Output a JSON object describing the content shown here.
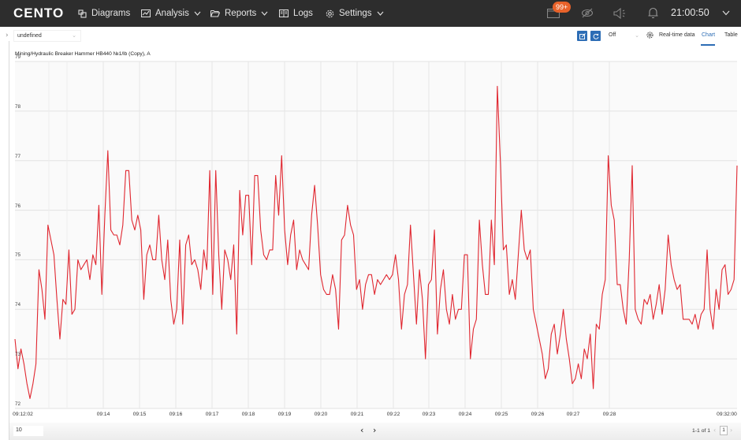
{
  "app": {
    "logo": "CENTO",
    "nav": [
      {
        "label": "Diagrams",
        "icon": "diagrams-icon",
        "has_dropdown": false
      },
      {
        "label": "Analysis",
        "icon": "analysis-icon",
        "has_dropdown": true
      },
      {
        "label": "Reports",
        "icon": "folder-icon",
        "has_dropdown": true
      },
      {
        "label": "Logs",
        "icon": "logs-icon",
        "has_dropdown": false
      },
      {
        "label": "Settings",
        "icon": "gear-icon",
        "has_dropdown": true
      }
    ],
    "notifications_badge": "99+",
    "clock": "21:00:50"
  },
  "toolbar": {
    "source_select": "undefined",
    "refresh_select": "Off",
    "realtime_label": "Real-time data",
    "tabs": [
      {
        "label": "Chart",
        "active": true
      },
      {
        "label": "Table",
        "active": false
      }
    ]
  },
  "footer": {
    "page_size": "10",
    "page_count": "1-1 of 1",
    "current_page": "1"
  },
  "colors": {
    "topbar": "#2d2d2d",
    "accent": "#2d6db5",
    "badge": "#e8622a",
    "series": "#e0262f"
  },
  "chart_data": {
    "type": "line",
    "title": "Mining/Hydraulic Breaker Hammer HB440 №1/lb (Copy), A",
    "xlabel": "",
    "ylabel": "A",
    "ylim": [
      72,
      79
    ],
    "yticks": [
      "79",
      "78",
      "77",
      "76",
      "75",
      "74",
      "73",
      "72"
    ],
    "xticks": [
      "09:12:02",
      "09:14",
      "09:15",
      "09:16",
      "09:17",
      "09:18",
      "09:19",
      "09:20",
      "09:21",
      "09:22",
      "09:23",
      "09:24",
      "09:25",
      "09:26",
      "09:27",
      "09:28",
      "09:32:00"
    ],
    "grid": true,
    "legend": "none",
    "series": [
      {
        "name": "Mining/Hydraulic Breaker Hammer HB440 №1/lb (Copy), A",
        "values": [
          73.4,
          72.8,
          73.2,
          72.9,
          72.5,
          72.2,
          72.5,
          72.9,
          74.8,
          74.4,
          73.8,
          75.7,
          75.4,
          75.1,
          74.2,
          73.4,
          74.2,
          74.1,
          75.2,
          73.9,
          74.0,
          75.0,
          74.8,
          74.9,
          75.0,
          74.6,
          75.1,
          74.9,
          76.1,
          74.3,
          75.9,
          77.2,
          75.6,
          75.5,
          75.5,
          75.3,
          75.7,
          76.8,
          76.8,
          75.8,
          75.6,
          75.9,
          75.6,
          74.2,
          75.1,
          75.3,
          75.0,
          75.0,
          75.9,
          75.0,
          74.6,
          75.4,
          74.2,
          73.7,
          74.0,
          75.4,
          73.7,
          75.3,
          75.5,
          74.9,
          75.0,
          74.8,
          74.4,
          75.2,
          74.8,
          76.8,
          74.3,
          76.8,
          75.1,
          74.0,
          75.2,
          75.0,
          74.6,
          75.3,
          73.5,
          76.4,
          75.5,
          76.3,
          76.3,
          74.9,
          76.7,
          76.7,
          75.6,
          75.1,
          75.0,
          75.2,
          75.2,
          76.7,
          75.9,
          77.1,
          75.6,
          74.9,
          75.5,
          75.8,
          74.8,
          75.2,
          75.0,
          74.9,
          74.8,
          75.9,
          76.5,
          75.7,
          74.7,
          74.4,
          74.3,
          74.3,
          74.7,
          74.4,
          73.6,
          75.4,
          75.5,
          76.1,
          75.7,
          75.5,
          74.4,
          74.6,
          74.0,
          74.5,
          74.7,
          74.7,
          74.3,
          74.6,
          74.5,
          74.6,
          74.7,
          74.6,
          74.7,
          75.1,
          74.6,
          73.6,
          74.3,
          74.5,
          75.7,
          74.7,
          73.7,
          74.8,
          74.2,
          73.0,
          74.5,
          74.6,
          75.6,
          73.5,
          74.4,
          74.8,
          74.0,
          73.7,
          74.3,
          73.8,
          74.0,
          74.0,
          75.1,
          75.1,
          73.0,
          73.6,
          73.8,
          75.8,
          74.9,
          74.3,
          74.3,
          75.8,
          74.9,
          78.5,
          77.0,
          75.2,
          75.3,
          74.3,
          74.6,
          74.2,
          75.1,
          76.0,
          75.2,
          75.0,
          75.2,
          74.0,
          73.7,
          73.4,
          73.1,
          72.6,
          72.8,
          73.5,
          73.7,
          73.1,
          73.5,
          74.0,
          73.4,
          73.0,
          72.5,
          72.6,
          72.9,
          72.6,
          73.2,
          73.0,
          73.5,
          72.4,
          73.7,
          73.6,
          74.3,
          74.6,
          77.1,
          76.1,
          75.8,
          74.5,
          74.5,
          74.0,
          73.7,
          75.0,
          76.9,
          74.0,
          73.8,
          73.7,
          74.2,
          74.1,
          74.3,
          73.8,
          74.1,
          74.5,
          73.9,
          74.4,
          75.5,
          74.9,
          74.6,
          74.4,
          74.5,
          73.8,
          73.8,
          73.8,
          73.7,
          73.9,
          73.6,
          73.9,
          74.0,
          75.2,
          74.0,
          73.6,
          74.4,
          74.0,
          74.8,
          74.9,
          74.3,
          74.4,
          74.6,
          76.9
        ]
      }
    ]
  }
}
